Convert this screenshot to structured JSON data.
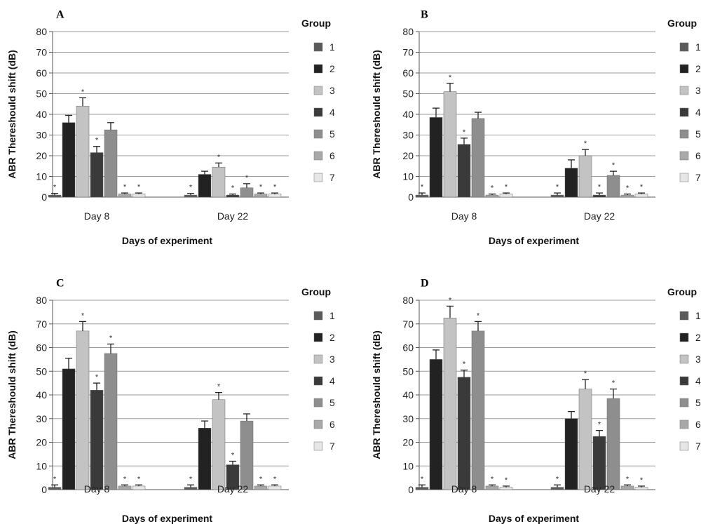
{
  "chart_data": [
    {
      "type": "bar",
      "panel": "A",
      "categories": [
        "Day 8",
        "Day 22"
      ],
      "xlabel": "Days of experiment",
      "ylabel": "ABR Thereshould shift (dB)",
      "ylim": [
        0,
        80
      ],
      "yticks": [
        0,
        10,
        20,
        30,
        40,
        50,
        60,
        70,
        80
      ],
      "grid": true,
      "legend_title": "Group",
      "legend_position": "right",
      "series": [
        {
          "name": "1",
          "color": "#5a5a5a",
          "values": [
            1,
            1
          ],
          "errors": [
            0.8,
            0.8
          ],
          "marks": [
            "*",
            "*"
          ]
        },
        {
          "name": "2",
          "color": "#222222",
          "values": [
            36,
            11
          ],
          "errors": [
            3.5,
            1.5
          ],
          "marks": [
            "",
            ""
          ]
        },
        {
          "name": "3",
          "color": "#c3c3c3",
          "values": [
            44,
            14.5
          ],
          "errors": [
            4,
            2
          ],
          "marks": [
            "*",
            "*"
          ]
        },
        {
          "name": "4",
          "color": "#3a3a3a",
          "values": [
            21.5,
            1
          ],
          "errors": [
            3,
            0.5
          ],
          "marks": [
            "*",
            "*"
          ]
        },
        {
          "name": "5",
          "color": "#8e8e8e",
          "values": [
            32.5,
            4.5
          ],
          "errors": [
            3.5,
            2
          ],
          "marks": [
            "",
            "*"
          ]
        },
        {
          "name": "6",
          "color": "#a8a8a8",
          "values": [
            1.5,
            1.5
          ],
          "errors": [
            0.5,
            0.5
          ],
          "marks": [
            "*",
            "*"
          ]
        },
        {
          "name": "7",
          "color": "#e6e6e6",
          "values": [
            1.5,
            1.5
          ],
          "errors": [
            0.5,
            0.5
          ],
          "marks": [
            "*",
            "*"
          ]
        }
      ]
    },
    {
      "type": "bar",
      "panel": "B",
      "categories": [
        "Day 8",
        "Day 22"
      ],
      "xlabel": "Days of experiment",
      "ylabel": "ABR Thereshould shift (dB)",
      "ylim": [
        0,
        80
      ],
      "yticks": [
        0,
        10,
        20,
        30,
        40,
        50,
        60,
        70,
        80
      ],
      "grid": true,
      "legend_title": "Group",
      "legend_position": "right",
      "series": [
        {
          "name": "1",
          "color": "#5a5a5a",
          "values": [
            1,
            1
          ],
          "errors": [
            1,
            1
          ],
          "marks": [
            "*",
            "*"
          ]
        },
        {
          "name": "2",
          "color": "#222222",
          "values": [
            38.5,
            14
          ],
          "errors": [
            4.5,
            4
          ],
          "marks": [
            "",
            ""
          ]
        },
        {
          "name": "3",
          "color": "#c3c3c3",
          "values": [
            51,
            20
          ],
          "errors": [
            4,
            3
          ],
          "marks": [
            "*",
            "*"
          ]
        },
        {
          "name": "4",
          "color": "#3a3a3a",
          "values": [
            25.5,
            1
          ],
          "errors": [
            3,
            1
          ],
          "marks": [
            "*",
            "*"
          ]
        },
        {
          "name": "5",
          "color": "#8e8e8e",
          "values": [
            38,
            10.5
          ],
          "errors": [
            3,
            2
          ],
          "marks": [
            "",
            "*"
          ]
        },
        {
          "name": "6",
          "color": "#a8a8a8",
          "values": [
            1,
            1
          ],
          "errors": [
            0.5,
            0.5
          ],
          "marks": [
            "*",
            "*"
          ]
        },
        {
          "name": "7",
          "color": "#e6e6e6",
          "values": [
            1.5,
            1.5
          ],
          "errors": [
            0.5,
            0.5
          ],
          "marks": [
            "*",
            "*"
          ]
        }
      ]
    },
    {
      "type": "bar",
      "panel": "C",
      "categories": [
        "Day 8",
        "Day 22"
      ],
      "xlabel": "Days of experiment",
      "ylabel": "ABR Thereshould shift (dB)",
      "ylim": [
        0,
        80
      ],
      "yticks": [
        0,
        10,
        20,
        30,
        40,
        50,
        60,
        70,
        80
      ],
      "grid": true,
      "legend_title": "Group",
      "legend_position": "right",
      "series": [
        {
          "name": "1",
          "color": "#5a5a5a",
          "values": [
            1,
            1
          ],
          "errors": [
            1,
            1
          ],
          "marks": [
            "*",
            "*"
          ]
        },
        {
          "name": "2",
          "color": "#222222",
          "values": [
            51,
            26
          ],
          "errors": [
            4.5,
            3
          ],
          "marks": [
            "",
            ""
          ]
        },
        {
          "name": "3",
          "color": "#c3c3c3",
          "values": [
            67,
            38
          ],
          "errors": [
            4,
            3
          ],
          "marks": [
            "*",
            "*"
          ]
        },
        {
          "name": "4",
          "color": "#3a3a3a",
          "values": [
            42,
            10.5
          ],
          "errors": [
            3,
            1.5
          ],
          "marks": [
            "*",
            "*"
          ]
        },
        {
          "name": "5",
          "color": "#8e8e8e",
          "values": [
            57.5,
            29
          ],
          "errors": [
            4,
            3
          ],
          "marks": [
            "*",
            ""
          ]
        },
        {
          "name": "6",
          "color": "#a8a8a8",
          "values": [
            1.5,
            1.5
          ],
          "errors": [
            0.5,
            0.5
          ],
          "marks": [
            "*",
            "*"
          ]
        },
        {
          "name": "7",
          "color": "#e6e6e6",
          "values": [
            1.5,
            1.5
          ],
          "errors": [
            0.5,
            0.5
          ],
          "marks": [
            "*",
            "*"
          ]
        }
      ]
    },
    {
      "type": "bar",
      "panel": "D",
      "categories": [
        "Day 8",
        "Day 22"
      ],
      "xlabel": "Days of experiment",
      "ylabel": "ABR Thereshould shift (dB)",
      "ylim": [
        0,
        80
      ],
      "yticks": [
        0,
        10,
        20,
        30,
        40,
        50,
        60,
        70,
        80
      ],
      "grid": true,
      "legend_title": "Group",
      "legend_position": "right",
      "series": [
        {
          "name": "1",
          "color": "#5a5a5a",
          "values": [
            1,
            1
          ],
          "errors": [
            1,
            1
          ],
          "marks": [
            "*",
            "*"
          ]
        },
        {
          "name": "2",
          "color": "#222222",
          "values": [
            55,
            30
          ],
          "errors": [
            4,
            3
          ],
          "marks": [
            "",
            ""
          ]
        },
        {
          "name": "3",
          "color": "#c3c3c3",
          "values": [
            72.5,
            42.5
          ],
          "errors": [
            5,
            4
          ],
          "marks": [
            "*",
            "*"
          ]
        },
        {
          "name": "4",
          "color": "#3a3a3a",
          "values": [
            47.5,
            22.5
          ],
          "errors": [
            3,
            2.5
          ],
          "marks": [
            "*",
            "*"
          ]
        },
        {
          "name": "5",
          "color": "#8e8e8e",
          "values": [
            67,
            38.5
          ],
          "errors": [
            4,
            4
          ],
          "marks": [
            "*",
            "*"
          ]
        },
        {
          "name": "6",
          "color": "#a8a8a8",
          "values": [
            1.5,
            1.5
          ],
          "errors": [
            0.5,
            0.5
          ],
          "marks": [
            "*",
            "*"
          ]
        },
        {
          "name": "7",
          "color": "#e6e6e6",
          "values": [
            1,
            1
          ],
          "errors": [
            0.5,
            0.5
          ],
          "marks": [
            "*",
            "*"
          ]
        }
      ]
    }
  ]
}
